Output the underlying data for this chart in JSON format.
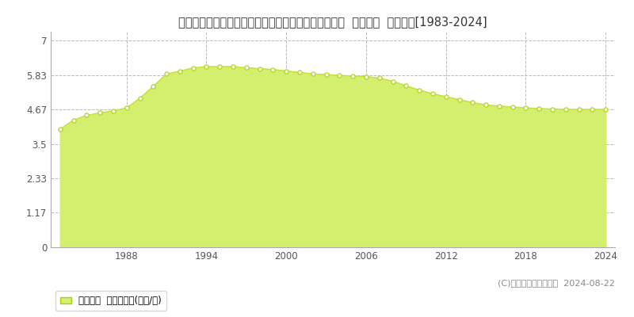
{
  "title": "栃木県塩谷郡高根沢町大字上高根沢字吹上７７３番３  地価公示  地価推移[1983-2024]",
  "years": [
    1983,
    1984,
    1985,
    1986,
    1987,
    1988,
    1989,
    1990,
    1991,
    1992,
    1993,
    1994,
    1995,
    1996,
    1997,
    1998,
    1999,
    2000,
    2001,
    2002,
    2003,
    2004,
    2005,
    2006,
    2007,
    2008,
    2009,
    2010,
    2011,
    2012,
    2013,
    2014,
    2015,
    2016,
    2017,
    2018,
    2019,
    2020,
    2021,
    2022,
    2023,
    2024
  ],
  "values": [
    4.0,
    4.3,
    4.47,
    4.55,
    4.62,
    4.72,
    5.05,
    5.45,
    5.87,
    5.97,
    6.07,
    6.12,
    6.12,
    6.12,
    6.08,
    6.05,
    6.02,
    5.97,
    5.92,
    5.87,
    5.85,
    5.82,
    5.8,
    5.78,
    5.73,
    5.62,
    5.47,
    5.32,
    5.2,
    5.1,
    5.0,
    4.9,
    4.82,
    4.78,
    4.75,
    4.72,
    4.7,
    4.68,
    4.67,
    4.67,
    4.67,
    4.67
  ],
  "fill_color": "#d4ef6e",
  "line_color": "#c8e030",
  "marker_facecolor": "#ffffff",
  "marker_edgecolor": "#aacf10",
  "yticks": [
    0,
    1.17,
    2.33,
    3.5,
    4.67,
    5.83,
    7
  ],
  "ytick_labels": [
    "0",
    "1.17",
    "2.33",
    "3.5",
    "4.67",
    "5.83",
    "7"
  ],
  "ylim": [
    0,
    7.3
  ],
  "xlim_left": 1982.3,
  "xlim_right": 2024.7,
  "xticks": [
    1988,
    1994,
    2000,
    2006,
    2012,
    2018,
    2024
  ],
  "grid_color": "#bbbbbb",
  "bg_color": "#ffffff",
  "legend_label": "地価公示  平均坪単価(万円/坪)",
  "copyright_text": "(C)土地価格ドットコム  2024-08-22",
  "title_fontsize": 10.5,
  "tick_fontsize": 8.5,
  "legend_fontsize": 8.5,
  "copyright_fontsize": 8
}
